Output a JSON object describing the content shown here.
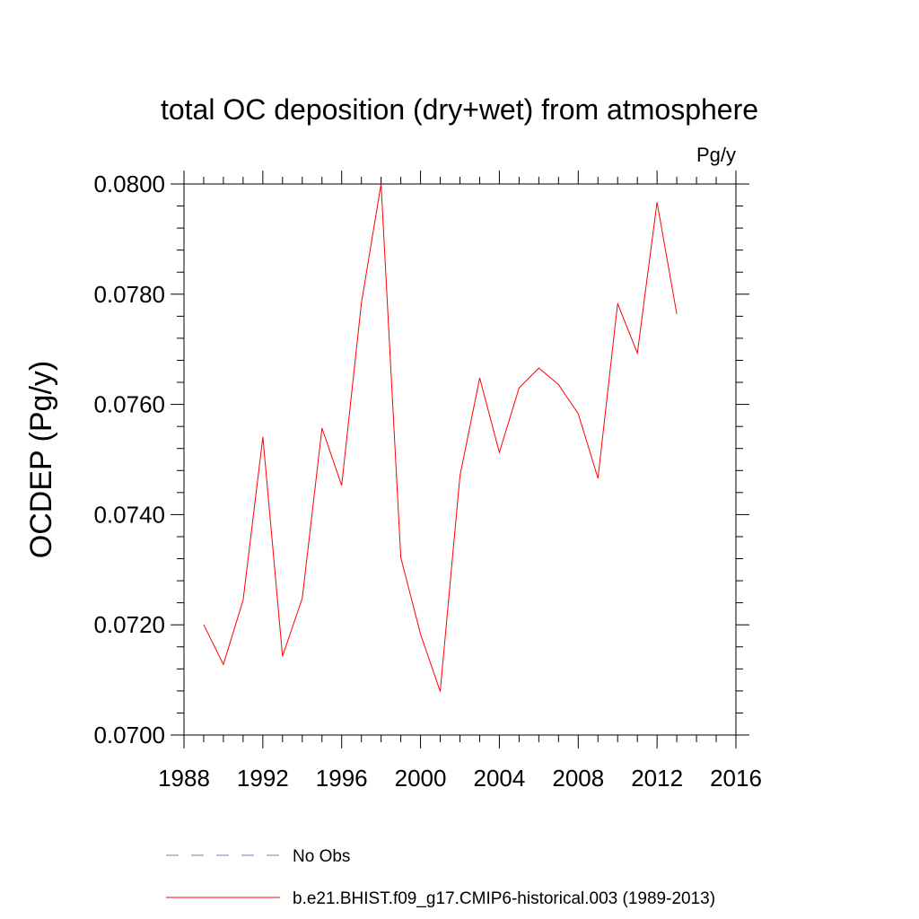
{
  "chart_data": {
    "type": "line",
    "title": "total OC deposition (dry+wet) from atmosphere",
    "units_label": "Pg/y",
    "ylabel": "OCDEP  (Pg/y)",
    "xlabel": "",
    "xlim": [
      1988,
      2016
    ],
    "ylim": [
      0.07,
      0.08
    ],
    "x_ticks": [
      1988,
      1992,
      1996,
      2000,
      2004,
      2008,
      2012,
      2016
    ],
    "x_tick_labels": [
      "1988",
      "1992",
      "1996",
      "2000",
      "2004",
      "2008",
      "2012",
      "2016"
    ],
    "y_ticks": [
      0.07,
      0.072,
      0.074,
      0.076,
      0.078,
      0.08
    ],
    "y_tick_labels": [
      "0.0700",
      "0.0720",
      "0.0740",
      "0.0760",
      "0.0780",
      "0.0800"
    ],
    "grid": false,
    "legend_position": "bottom",
    "series": [
      {
        "name": "b.e21.BHIST.f09_g17.CMIP6-historical.003 (1989-2013)",
        "color": "#ff0000",
        "style": "solid",
        "x": [
          1989,
          1990,
          1991,
          1992,
          1993,
          1994,
          1995,
          1996,
          1997,
          1998,
          1999,
          2000,
          2001,
          2002,
          2003,
          2004,
          2005,
          2006,
          2007,
          2008,
          2009,
          2010,
          2011,
          2012,
          2013
        ],
        "values": [
          0.072,
          0.07128,
          0.07245,
          0.07541,
          0.07143,
          0.07248,
          0.07557,
          0.07453,
          0.07784,
          0.08,
          0.07322,
          0.07183,
          0.07079,
          0.0747,
          0.07648,
          0.07513,
          0.0763,
          0.07666,
          0.07636,
          0.07583,
          0.07466,
          0.07783,
          0.07693,
          0.07967,
          0.07764
        ]
      }
    ],
    "legend_entries": [
      {
        "label": "No Obs",
        "color": "#7a7ab8",
        "style": "dashed"
      },
      {
        "label": "b.e21.BHIST.f09_g17.CMIP6-historical.003 (1989-2013)",
        "color": "#ff0000",
        "style": "solid"
      }
    ]
  }
}
